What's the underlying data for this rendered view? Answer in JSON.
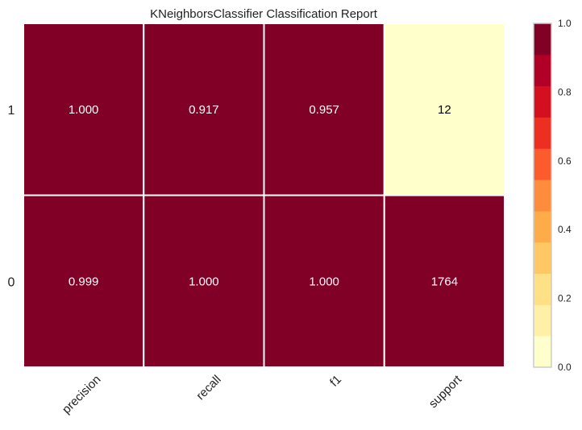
{
  "chart_data": {
    "type": "heatmap",
    "title": "KNeighborsClassifier Classification Report",
    "x_categories": [
      "precision",
      "recall",
      "f1",
      "support"
    ],
    "y_categories": [
      "1",
      "0"
    ],
    "cells": [
      {
        "row": "1",
        "col": "precision",
        "label": "1.000",
        "value": 1.0
      },
      {
        "row": "1",
        "col": "recall",
        "label": "0.917",
        "value": 0.917
      },
      {
        "row": "1",
        "col": "f1",
        "label": "0.957",
        "value": 0.957
      },
      {
        "row": "1",
        "col": "support",
        "label": "12",
        "value": 0.0068
      },
      {
        "row": "0",
        "col": "precision",
        "label": "0.999",
        "value": 0.999
      },
      {
        "row": "0",
        "col": "recall",
        "label": "1.000",
        "value": 1.0
      },
      {
        "row": "0",
        "col": "f1",
        "label": "1.000",
        "value": 1.0
      },
      {
        "row": "0",
        "col": "support",
        "label": "1764",
        "value": 1.0
      }
    ],
    "colorbar": {
      "range": [
        0.0,
        1.0
      ],
      "tick_labels": [
        "0.0",
        "0.2",
        "0.4",
        "0.6",
        "0.8",
        "1.0"
      ],
      "tick_values": [
        0.0,
        0.2,
        0.4,
        0.6,
        0.8,
        1.0
      ],
      "bands": [
        "#ffffcc",
        "#fff0a8",
        "#fee087",
        "#fec965",
        "#feab49",
        "#fd8c3c",
        "#fc5b2e",
        "#ed2f21",
        "#d41020",
        "#b00026",
        "#800026"
      ]
    },
    "grid": true
  }
}
